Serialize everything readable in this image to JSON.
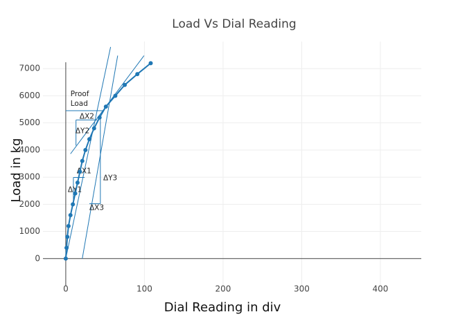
{
  "chart_data": {
    "type": "line",
    "title": "Load Vs Dial Reading",
    "x_label": "Dial Reading in div",
    "y_label": "Load in kg",
    "series": [
      {
        "color": "#1f77b4",
        "x": [
          0,
          1,
          2,
          3.5,
          6,
          9,
          12,
          15,
          18,
          21,
          25,
          30,
          36,
          43,
          51,
          63,
          75,
          91,
          108
        ],
        "y": [
          0,
          400,
          800,
          1200,
          1600,
          2000,
          2400,
          2800,
          3200,
          3600,
          4000,
          4400,
          4800,
          5200,
          5600,
          6000,
          6400,
          6800,
          7200
        ]
      }
    ],
    "shape_color": "#1f77b4",
    "shapes": [
      {
        "x0": 0,
        "y0": 0,
        "x1": 57,
        "y1": 7800
      },
      {
        "x0": 21,
        "y0": 0,
        "x1": 66,
        "y1": 7480
      },
      {
        "x0": 6,
        "y0": 3860,
        "x1": 99.5,
        "y1": 7480
      },
      {
        "x0": 0,
        "y0": 5450,
        "x1": 48,
        "y1": 5450
      },
      {
        "x0": 13,
        "y0": 5110,
        "x1": 40,
        "y1": 5110
      },
      {
        "x0": 13,
        "y0": 5110,
        "x1": 13,
        "y1": 4165
      },
      {
        "x0": 9.7,
        "y0": 2990,
        "x1": 24,
        "y1": 2990
      },
      {
        "x0": 9.7,
        "y0": 2990,
        "x1": 9.7,
        "y1": 2120
      },
      {
        "x0": 30,
        "y0": 2020,
        "x1": 44,
        "y1": 2020
      },
      {
        "x0": 44,
        "y0": 2020,
        "x1": 44,
        "y1": 5310
      }
    ],
    "annotations": [
      {
        "text": "Proof",
        "x": 6,
        "y": 6060
      },
      {
        "text": "Load",
        "x": 6,
        "y": 5700
      },
      {
        "text": "ΔX2",
        "x": 17.6,
        "y": 5240
      },
      {
        "text": "ΔY2",
        "x": 12.3,
        "y": 4700
      },
      {
        "text": "ΔX1",
        "x": 14,
        "y": 3220
      },
      {
        "text": "ΔY1",
        "x": 2.6,
        "y": 2530
      },
      {
        "text": "ΔY3",
        "x": 47.6,
        "y": 2960
      },
      {
        "text": "ΔX3",
        "x": 30,
        "y": 1865
      }
    ],
    "xlim": [
      -29,
      452
    ],
    "ylim": [
      -1000,
      8000
    ],
    "xticks": [
      0,
      100,
      200,
      300,
      400
    ],
    "yticks": [
      0,
      1000,
      2000,
      3000,
      4000,
      5000,
      6000,
      7000
    ],
    "grid": true
  }
}
